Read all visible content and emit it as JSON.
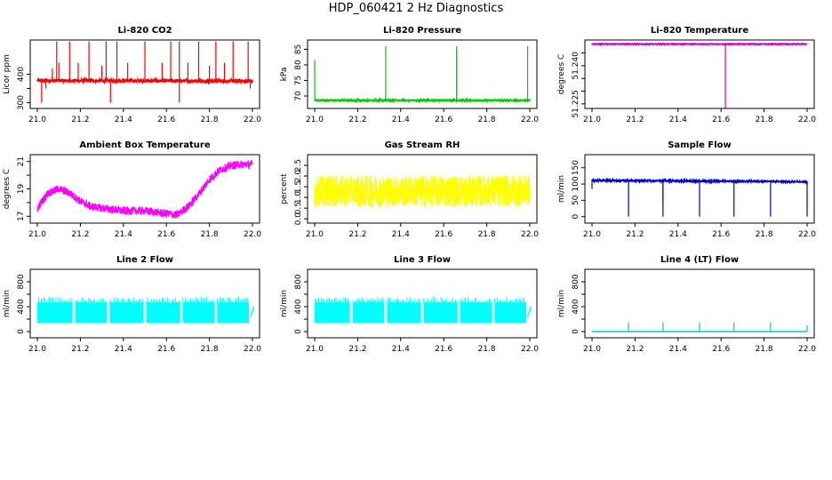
{
  "title": "HDP_060421  2 Hz Diagnostics",
  "chart_data": [
    {
      "type": "line",
      "title": "Li-820 CO2",
      "ylabel": "Licor ppm",
      "xlim": [
        21.0,
        22.0
      ],
      "ylim": [
        280,
        520
      ],
      "xticks": [
        "21.0",
        "21.2",
        "21.4",
        "21.6",
        "21.8",
        "22.0"
      ],
      "yticks": [
        300,
        350,
        400
      ],
      "ytick_labels": [
        "300",
        "",
        "400"
      ],
      "color": "#ff0000",
      "series": [
        {
          "x": [
            21.0,
            22.0
          ],
          "y": [
            378,
            376
          ],
          "noise": 6,
          "spikes": [
            [
              21.02,
              300
            ],
            [
              21.04,
              350
            ],
            [
              21.07,
              420
            ],
            [
              21.09,
              515
            ],
            [
              21.1,
              440
            ],
            [
              21.15,
              515
            ],
            [
              21.19,
              440
            ],
            [
              21.24,
              515
            ],
            [
              21.3,
              430
            ],
            [
              21.32,
              515
            ],
            [
              21.34,
              300
            ],
            [
              21.37,
              515
            ],
            [
              21.42,
              440
            ],
            [
              21.5,
              515
            ],
            [
              21.58,
              440
            ],
            [
              21.62,
              515
            ],
            [
              21.66,
              300
            ],
            [
              21.66,
              515
            ],
            [
              21.7,
              440
            ],
            [
              21.75,
              515
            ],
            [
              21.8,
              430
            ],
            [
              21.83,
              515
            ],
            [
              21.87,
              440
            ],
            [
              21.91,
              515
            ],
            [
              21.98,
              515
            ],
            [
              21.99,
              350
            ]
          ]
        }
      ]
    },
    {
      "type": "line",
      "title": "Li-820 Pressure",
      "ylabel": "kPa",
      "xlim": [
        21.0,
        22.0
      ],
      "ylim": [
        66,
        88
      ],
      "xticks": [
        "21.0",
        "21.2",
        "21.4",
        "21.6",
        "21.8",
        "22.0"
      ],
      "yticks": [
        70,
        75,
        80,
        85
      ],
      "ytick_labels": [
        "70",
        "75",
        "80",
        "85"
      ],
      "color": "#00cc00",
      "series": [
        {
          "x": [
            21.0,
            22.0
          ],
          "y": [
            68.6,
            68.6
          ],
          "noise": 0.15,
          "spikes": [
            [
              21.0,
              81.5
            ],
            [
              21.33,
              86
            ],
            [
              21.66,
              86
            ],
            [
              21.66,
              85
            ],
            [
              21.99,
              86
            ]
          ]
        }
      ]
    },
    {
      "type": "line",
      "title": "Li-820 Temperature",
      "ylabel": "degrees C",
      "xlim": [
        21.0,
        22.0
      ],
      "ylim": [
        51.2232,
        51.2501
      ],
      "xticks": [
        "21.0",
        "21.2",
        "21.4",
        "21.6",
        "21.8",
        "22.0"
      ],
      "yticks": [
        51.225,
        51.23,
        51.235,
        51.24,
        51.245
      ],
      "ytick_labels": [
        "51.225",
        "",
        "",
        "51.240",
        ""
      ],
      "color": "#cc00cc",
      "series": [
        {
          "x": [
            21.0,
            22.0
          ],
          "y": [
            51.2485,
            51.2485
          ],
          "noise": 0.0001,
          "spikes": [
            [
              21.62,
              51.2232
            ]
          ]
        }
      ]
    },
    {
      "type": "line",
      "title": "Ambient Box Temperature",
      "ylabel": "degrees C",
      "xlim": [
        21.0,
        22.0
      ],
      "ylim": [
        16.5,
        21.5
      ],
      "xticks": [
        "21.0",
        "21.2",
        "21.4",
        "21.6",
        "21.8",
        "22.0"
      ],
      "yticks": [
        17,
        18,
        19,
        20,
        21
      ],
      "ytick_labels": [
        "17",
        "",
        "19",
        "",
        "21"
      ],
      "color": "#ff00ff",
      "series": [
        {
          "x": [
            21.0,
            21.05,
            21.1,
            21.15,
            21.2,
            21.25,
            21.3,
            21.4,
            21.5,
            21.6,
            21.65,
            21.7,
            21.75,
            21.8,
            21.85,
            21.9,
            21.95,
            22.0
          ],
          "y": [
            17.6,
            18.7,
            19.0,
            18.7,
            18.1,
            17.7,
            17.6,
            17.4,
            17.4,
            17.2,
            17.1,
            17.7,
            18.6,
            19.7,
            20.4,
            20.7,
            20.8,
            20.8
          ],
          "noise": 0.3
        }
      ]
    },
    {
      "type": "line",
      "title": "Gas Stream RH",
      "ylabel": "percent",
      "xlim": [
        21.0,
        22.0
      ],
      "ylim": [
        -0.2,
        3.0
      ],
      "xticks": [
        "21.0",
        "21.2",
        "21.4",
        "21.6",
        "21.8",
        "22.0"
      ],
      "yticks": [
        0.0,
        0.5,
        1.0,
        1.5,
        2.0,
        2.5
      ],
      "ytick_labels": [
        "0.0",
        "0.5",
        "1.0",
        "1.5",
        "2.0",
        "2.5"
      ],
      "color": "#ffff00",
      "series": [
        {
          "x": [
            21.0,
            22.0
          ],
          "y": [
            1.3,
            1.3
          ],
          "noise": 0.75
        }
      ]
    },
    {
      "type": "line",
      "title": "Sample Flow",
      "ylabel": "ml/min",
      "xlim": [
        21.0,
        22.0
      ],
      "ylim": [
        -20,
        190
      ],
      "xticks": [
        "21.0",
        "21.2",
        "21.4",
        "21.6",
        "21.8",
        "22.0"
      ],
      "yticks": [
        0,
        50,
        100,
        150
      ],
      "ytick_labels": [
        "0",
        "50",
        "100",
        "150"
      ],
      "color": "#0000cc",
      "series": [
        {
          "x": [
            21.0,
            22.0
          ],
          "y": [
            111,
            107
          ],
          "noise": 2,
          "spikes": [
            [
              21.0,
              85
            ],
            [
              21.17,
              0
            ],
            [
              21.33,
              0
            ],
            [
              21.33,
              50
            ],
            [
              21.5,
              0
            ],
            [
              21.66,
              0
            ],
            [
              21.83,
              0
            ],
            [
              22.0,
              0
            ]
          ]
        }
      ]
    },
    {
      "type": "area",
      "title": "Line 2 Flow",
      "ylabel": "ml/min",
      "xlim": [
        21.0,
        22.0
      ],
      "ylim": [
        -100,
        1000
      ],
      "xticks": [
        "21.0",
        "21.2",
        "21.4",
        "21.6",
        "21.8",
        "22.0"
      ],
      "yticks": [
        0,
        200,
        400,
        600,
        800
      ],
      "ytick_labels": [
        "0",
        "",
        "400",
        "",
        "800"
      ],
      "color": "#00ffff",
      "series": [
        {
          "x": [
            21.0,
            21.99
          ],
          "lower": 140,
          "upper": 470,
          "gaps": [
            21.17,
            21.33,
            21.5,
            21.67,
            21.83
          ],
          "tail": [
            21.99,
            400
          ]
        }
      ]
    },
    {
      "type": "area",
      "title": "Line 3 Flow",
      "ylabel": "ml/min",
      "xlim": [
        21.0,
        22.0
      ],
      "ylim": [
        -100,
        1000
      ],
      "xticks": [
        "21.0",
        "21.2",
        "21.4",
        "21.6",
        "21.8",
        "22.0"
      ],
      "yticks": [
        0,
        200,
        400,
        600,
        800
      ],
      "ytick_labels": [
        "0",
        "",
        "400",
        "",
        "800"
      ],
      "color": "#00ffff",
      "series": [
        {
          "x": [
            21.0,
            21.99
          ],
          "lower": 140,
          "upper": 470,
          "gaps": [
            21.17,
            21.33,
            21.5,
            21.67,
            21.83
          ],
          "tail": [
            21.99,
            400
          ]
        }
      ]
    },
    {
      "type": "line",
      "title": "Line 4 (LT) Flow",
      "ylabel": "ml/min",
      "xlim": [
        21.0,
        22.0
      ],
      "ylim": [
        -100,
        1000
      ],
      "xticks": [
        "21.0",
        "21.2",
        "21.4",
        "21.6",
        "21.8",
        "22.0"
      ],
      "yticks": [
        0,
        200,
        400,
        600,
        800
      ],
      "ytick_labels": [
        "0",
        "",
        "400",
        "",
        "800"
      ],
      "color": "#00cccc",
      "series": [
        {
          "x": [
            21.0,
            22.0
          ],
          "y": [
            0,
            0
          ],
          "noise": 0,
          "spikes": [
            [
              21.17,
              150
            ],
            [
              21.33,
              150
            ],
            [
              21.5,
              150
            ],
            [
              21.66,
              150
            ],
            [
              21.83,
              150
            ],
            [
              22.0,
              100
            ]
          ]
        }
      ]
    }
  ]
}
